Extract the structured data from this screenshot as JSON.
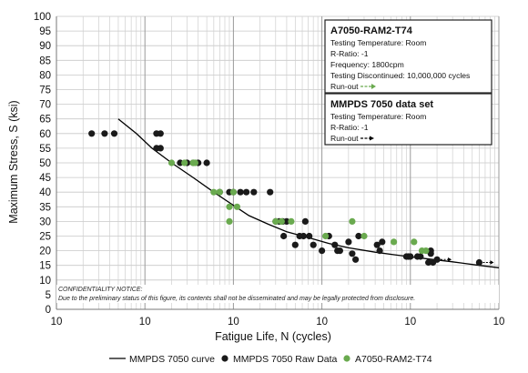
{
  "chart_data": {
    "type": "scatter",
    "ylabel": "Maximum Stress, S (ksi)",
    "xlabel": "Fatigue Life, N (cycles)",
    "xscale": "log",
    "xlim": [
      1000,
      100000000
    ],
    "ylim": [
      0,
      100
    ],
    "y_ticks": [
      "0",
      "5",
      "10",
      "15",
      "20",
      "25",
      "30",
      "35",
      "40",
      "45",
      "50",
      "55",
      "60",
      "65",
      "70",
      "75",
      "80",
      "85",
      "90",
      "95",
      "100"
    ],
    "x_tick_labels": [
      "10",
      "10",
      "10",
      "10",
      "10",
      "10"
    ],
    "grid": "minor-log",
    "legend_position": "bottom",
    "series": [
      {
        "name": "MMPDS 7050 curve",
        "kind": "line",
        "color": "#000000",
        "points": [
          [
            5000,
            65
          ],
          [
            8000,
            60
          ],
          [
            12000,
            55
          ],
          [
            20000,
            50
          ],
          [
            35000,
            45
          ],
          [
            60000,
            40
          ],
          [
            100000,
            35.5
          ],
          [
            150000,
            32
          ],
          [
            250000,
            29
          ],
          [
            400000,
            26.5
          ],
          [
            700000,
            24.5
          ],
          [
            1200000,
            22.5
          ],
          [
            2000000,
            21
          ],
          [
            4000000,
            19.5
          ],
          [
            7000000,
            18.5
          ],
          [
            15000000,
            17.3
          ],
          [
            30000000,
            16.2
          ],
          [
            60000000,
            15
          ],
          [
            100000000,
            14.2
          ]
        ]
      },
      {
        "name": "MMPDS 7050 Raw Data",
        "kind": "scatter",
        "color": "#1a1a1a",
        "points": [
          [
            2500,
            60
          ],
          [
            3500,
            60
          ],
          [
            4500,
            60
          ],
          [
            13500,
            60
          ],
          [
            15000,
            60
          ],
          [
            13500,
            55
          ],
          [
            15000,
            55
          ],
          [
            25000,
            50
          ],
          [
            30000,
            50
          ],
          [
            35000,
            50
          ],
          [
            40000,
            50
          ],
          [
            50000,
            50
          ],
          [
            70000,
            40
          ],
          [
            90000,
            40
          ],
          [
            100000,
            40
          ],
          [
            120000,
            40
          ],
          [
            140000,
            40
          ],
          [
            170000,
            40
          ],
          [
            260000,
            40
          ],
          [
            300000,
            30
          ],
          [
            330000,
            30
          ],
          [
            360000,
            30
          ],
          [
            400000,
            30
          ],
          [
            650000,
            30
          ],
          [
            370000,
            25
          ],
          [
            500000,
            22
          ],
          [
            560000,
            25
          ],
          [
            620000,
            25
          ],
          [
            720000,
            25
          ],
          [
            800000,
            22
          ],
          [
            1000000,
            20
          ],
          [
            1200000,
            25
          ],
          [
            1400000,
            22
          ],
          [
            1500000,
            20
          ],
          [
            1600000,
            20
          ],
          [
            2000000,
            23
          ],
          [
            2200000,
            19
          ],
          [
            2400000,
            17
          ],
          [
            2600000,
            25
          ],
          [
            4200000,
            22
          ],
          [
            4500000,
            20
          ],
          [
            4800000,
            23
          ],
          [
            9000000,
            18
          ],
          [
            9500000,
            18
          ],
          [
            10000000,
            18
          ],
          [
            12000000,
            18
          ],
          [
            13000000,
            18
          ],
          [
            16000000,
            16
          ],
          [
            18000000,
            16
          ],
          [
            17000000,
            19
          ],
          [
            17000000,
            20
          ],
          [
            20000000,
            17
          ],
          [
            60000000,
            16
          ]
        ]
      },
      {
        "name": "A7050-RAM2-T74",
        "kind": "scatter",
        "color": "#6aaa4f",
        "points": [
          [
            20000,
            50
          ],
          [
            28000,
            50
          ],
          [
            35000,
            50
          ],
          [
            37000,
            50
          ],
          [
            60000,
            40
          ],
          [
            70000,
            40
          ],
          [
            90000,
            35
          ],
          [
            90000,
            30
          ],
          [
            100000,
            40
          ],
          [
            110000,
            35
          ],
          [
            300000,
            30
          ],
          [
            350000,
            30
          ],
          [
            450000,
            30
          ],
          [
            1100000,
            25
          ],
          [
            2200000,
            30
          ],
          [
            3000000,
            25
          ],
          [
            6500000,
            23
          ],
          [
            11000000,
            23
          ],
          [
            13500000,
            20
          ],
          [
            15000000,
            20
          ]
        ]
      }
    ],
    "legend": [
      "MMPDS 7050 curve",
      "MMPDS 7050 Raw Data",
      "A7050-RAM2-T74"
    ],
    "annotations": {
      "box1": {
        "title": "A7050-RAM2-T74",
        "lines": [
          "Testing Temperature: Room",
          "R-Ratio: -1",
          "Frequency: 1800cpm",
          "Testing Discontinued: 10,000,000 cycles"
        ],
        "runout_label": "Run-out",
        "runout_color": "#6aaa4f"
      },
      "box2": {
        "title": "MMPDS 7050 data set",
        "lines": [
          "Testing Temperature: Room",
          "R-Ratio: -1"
        ],
        "runout_label": "Run-out",
        "runout_color": "#000000"
      },
      "confidentiality": [
        "CONFIDENTIALITY NOTICE:",
        "Due to the preliminary status of this figure, its contents shall not be disseminated and may be legally protected from disclosure."
      ]
    }
  }
}
